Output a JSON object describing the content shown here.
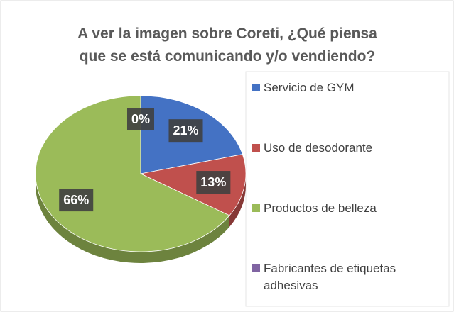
{
  "chart_data": {
    "type": "pie",
    "title": [
      "A ver la imagen sobre Coreti, ¿Qué piensa",
      "que se está comunicando y/o vendiendo?"
    ],
    "categories": [
      "Servicio de GYM",
      "Uso de desodorante",
      "Productos de belleza",
      "Fabricantes de etiquetas adhesivas"
    ],
    "values": [
      21,
      13,
      66,
      0
    ],
    "value_labels": [
      "21%",
      "13%",
      "66%",
      "0%"
    ],
    "colors": [
      "#4472c4",
      "#c0504d",
      "#9bbb59",
      "#8064a2"
    ],
    "legend": "right"
  }
}
